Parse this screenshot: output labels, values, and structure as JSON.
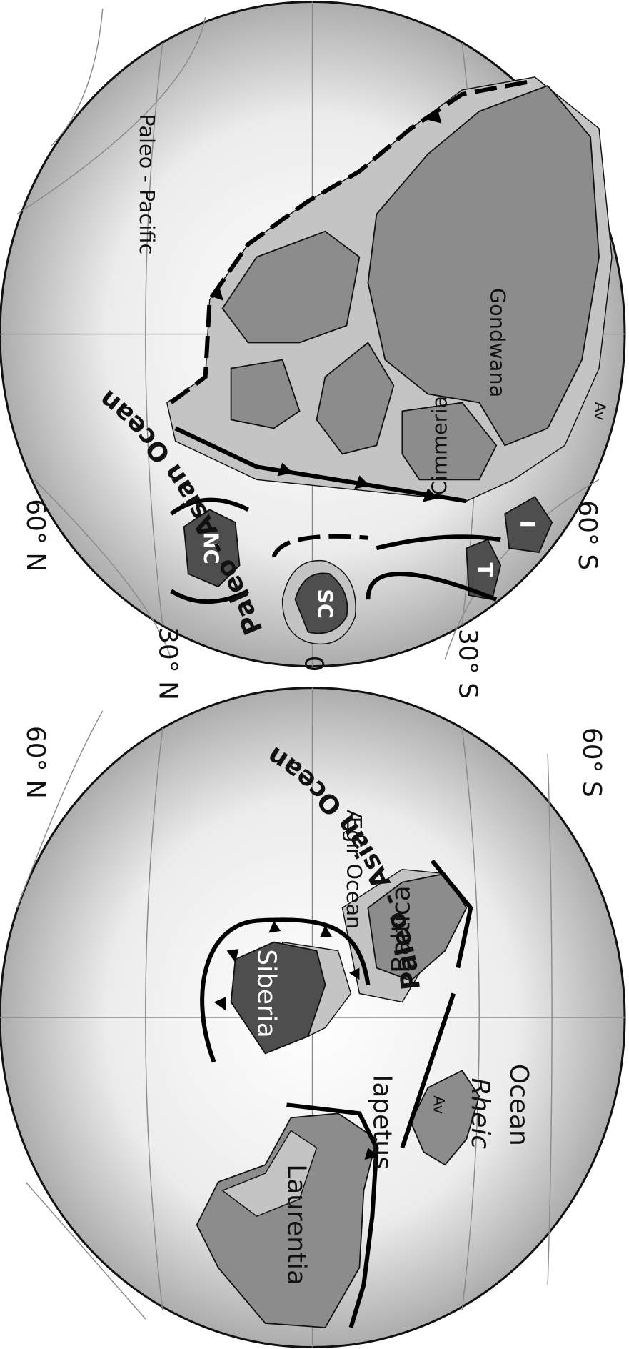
{
  "grid_labels": [
    "60° N",
    "60° N",
    "30° N",
    "0",
    "30° S",
    "60° S",
    "60° S"
  ],
  "globes": [
    {
      "labels": [
        "Laurentia",
        "Iapetus",
        "Baltica",
        "Ægir Ocean",
        "Siberia",
        "Av",
        "Rheic",
        "Ocean",
        "Paleo - Asian Ocean"
      ]
    },
    {
      "labels": [
        "Paleo - Pacific",
        "Gondwana",
        "Cimmeria",
        "NC",
        "SC",
        "T",
        "I",
        "Av",
        "Paleo - Asian Ocean"
      ]
    }
  ]
}
